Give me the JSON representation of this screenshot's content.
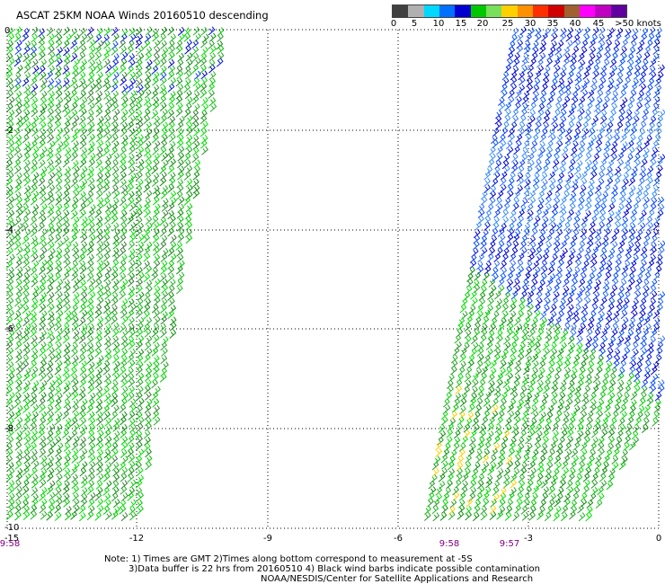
{
  "header": {
    "title": "ASCAT 25KM NOAA Winds 20160510 descending"
  },
  "colorbar": {
    "colors": [
      "#404040",
      "#b0b0b0",
      "#00d8ff",
      "#0070ff",
      "#0000d0",
      "#00c800",
      "#78e05a",
      "#ffd000",
      "#ff9000",
      "#ff3000",
      "#d00000",
      "#a06030",
      "#ff00ff",
      "#c000c0",
      "#6000a0"
    ],
    "labels": [
      "0",
      "5",
      "10",
      "15",
      "20",
      "25",
      "30",
      "35",
      "40",
      "45",
      ">50 knots"
    ]
  },
  "axes": {
    "x_ticks": [
      "-15",
      "-12",
      "-9",
      "-6",
      "-3",
      "0"
    ],
    "y_ticks": [
      "0",
      "-2",
      "-4",
      "-6",
      "-8",
      "-10"
    ]
  },
  "times": [
    "9:58",
    "9:58",
    "9:57"
  ],
  "notes": {
    "line1": "Note: 1) Times are GMT 2)Times along bottom correspond to measurement at -5S",
    "line2": "3)Data buffer is 22 hrs from 20160510 4) Black wind barbs indicate possible contamination",
    "line3": "NOAA/NESDIS/Center for Satellite Applications and Research"
  }
}
